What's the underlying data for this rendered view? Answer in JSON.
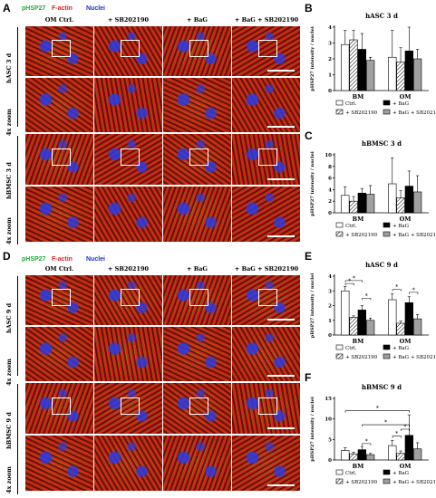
{
  "figure": {
    "panels": [
      "A",
      "B",
      "C",
      "D",
      "E",
      "F"
    ],
    "stains": [
      {
        "label": "pHSP27",
        "color": "#1fae3a"
      },
      {
        "label": "F-actin",
        "color": "#e02020"
      },
      {
        "label": "Nuclei",
        "color": "#2233cc"
      }
    ],
    "column_headers": [
      "OM Ctrl.",
      "+ SB202190",
      "+ BaG",
      "+ BaG + SB202190"
    ],
    "row_labels_A": [
      "hASC 3 d",
      "4x zoom",
      "hBMSC 3 d",
      "4x zoom"
    ],
    "row_labels_D": [
      "hASC 9 d",
      "4x zoom",
      "hBMSC 9 d",
      "4x zoom"
    ]
  },
  "legend": {
    "ctrl": "Ctrl.",
    "bag": "+ BaG",
    "sb": "+ SB202190",
    "bagsb": "+ BaG + SB202190"
  },
  "chart_data": [
    {
      "panel": "B",
      "type": "bar",
      "title": "hASC 3 d",
      "ylabel": "pHSP27 intensity / nuclei",
      "ylim": [
        0,
        4
      ],
      "yticks": [
        0,
        1,
        2,
        3,
        4
      ],
      "groups": [
        "BM",
        "OM"
      ],
      "series": [
        {
          "name": "Ctrl.",
          "values": [
            2.9,
            2.1
          ],
          "errors": [
            0.9,
            1.7
          ]
        },
        {
          "name": "+ SB202190",
          "values": [
            3.2,
            1.8
          ],
          "errors": [
            0.6,
            0.9
          ]
        },
        {
          "name": "+ BaG",
          "values": [
            2.6,
            2.5
          ],
          "errors": [
            1.0,
            3.4
          ]
        },
        {
          "name": "+ BaG + SB202190",
          "values": [
            1.9,
            2.0
          ],
          "errors": [
            0.2,
            0.6
          ]
        }
      ],
      "significance": []
    },
    {
      "panel": "C",
      "type": "bar",
      "title": "hBMSC 3 d",
      "ylabel": "pHSP27 intensity / nuclei",
      "ylim": [
        0,
        10
      ],
      "yticks": [
        0,
        2,
        4,
        6,
        8,
        10
      ],
      "groups": [
        "BM",
        "OM"
      ],
      "series": [
        {
          "name": "Ctrl.",
          "values": [
            3.0,
            5.0
          ],
          "errors": [
            1.5,
            4.5
          ]
        },
        {
          "name": "+ SB202190",
          "values": [
            2.0,
            2.6
          ],
          "errors": [
            0.8,
            1.2
          ]
        },
        {
          "name": "+ BaG",
          "values": [
            3.4,
            4.6
          ],
          "errors": [
            0.8,
            2.6
          ]
        },
        {
          "name": "+ BaG + SB202190",
          "values": [
            3.2,
            3.6
          ],
          "errors": [
            1.5,
            2.8
          ]
        }
      ],
      "significance": []
    },
    {
      "panel": "E",
      "type": "bar",
      "title": "hASC 9 d",
      "ylabel": "pHSP27 intensity / nuclei",
      "ylim": [
        0,
        4
      ],
      "yticks": [
        0,
        1,
        2,
        3,
        4
      ],
      "groups": [
        "BM",
        "OM"
      ],
      "series": [
        {
          "name": "Ctrl.",
          "values": [
            3.0,
            2.4
          ],
          "errors": [
            0.3,
            0.4
          ]
        },
        {
          "name": "+ SB202190",
          "values": [
            1.2,
            0.8
          ],
          "errors": [
            0.1,
            0.15
          ]
        },
        {
          "name": "+ BaG",
          "values": [
            1.7,
            2.2
          ],
          "errors": [
            0.3,
            0.4
          ]
        },
        {
          "name": "+ BaG + SB202190",
          "values": [
            1.0,
            1.1
          ],
          "errors": [
            0.15,
            0.3
          ]
        }
      ],
      "significance": [
        {
          "group": 0,
          "from": 0,
          "to": 1,
          "level": 3.5,
          "mark": "*"
        },
        {
          "group": 0,
          "from": 0,
          "to": 2,
          "level": 3.7,
          "mark": "*"
        },
        {
          "group": 0,
          "from": 2,
          "to": 3,
          "level": 2.5,
          "mark": "*"
        },
        {
          "group": 1,
          "from": 0,
          "to": 1,
          "level": 3.1,
          "mark": "*"
        },
        {
          "group": 1,
          "from": 2,
          "to": 3,
          "level": 2.9,
          "mark": "*"
        }
      ]
    },
    {
      "panel": "F",
      "type": "bar",
      "title": "hBMSC 9 d",
      "ylabel": "pHSP27 intensity / nuclei",
      "ylim": [
        0,
        15
      ],
      "yticks": [
        0,
        5,
        10,
        15
      ],
      "groups": [
        "BM",
        "OM"
      ],
      "series": [
        {
          "name": "Ctrl.",
          "values": [
            2.3,
            3.5
          ],
          "errors": [
            0.7,
            1.3
          ]
        },
        {
          "name": "+ SB202190",
          "values": [
            1.5,
            1.6
          ],
          "errors": [
            0.4,
            0.6
          ]
        },
        {
          "name": "+ BaG",
          "values": [
            2.5,
            6.0
          ],
          "errors": [
            0.8,
            5.0
          ]
        },
        {
          "name": "+ BaG + SB202190",
          "values": [
            1.3,
            2.7
          ],
          "errors": [
            0.3,
            1.5
          ]
        }
      ],
      "significance": [
        {
          "group": 0,
          "from": 2,
          "to": 3,
          "level": 4.0,
          "mark": "*"
        },
        {
          "group": 1,
          "from": 0,
          "to": 1,
          "level": 5.8,
          "mark": "*"
        },
        {
          "group": 1,
          "from": 1,
          "to": 2,
          "level": 7.5,
          "mark": "*"
        },
        {
          "span": [
            0,
            0,
            1,
            2
          ],
          "level": 12.0,
          "mark": "*"
        },
        {
          "span": [
            0,
            2,
            1,
            2
          ],
          "level": 8.6,
          "mark": "*"
        }
      ]
    }
  ]
}
